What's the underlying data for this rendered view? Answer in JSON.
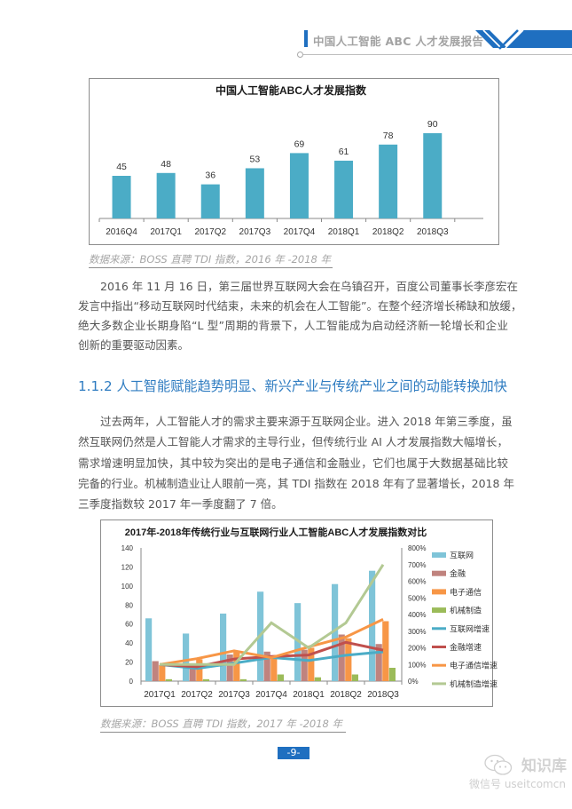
{
  "header": {
    "title": "中国人工智能 ABC 人才发展报告"
  },
  "colors": {
    "brand_blue": "#1f6fc0",
    "heading_blue": "#2f7cc1",
    "body_text": "#555555",
    "source_text": "#a6a6a6"
  },
  "figure1": {
    "source": "数据来源：BOSS 直聘 TDI 指数，2016 年 -2018 年"
  },
  "paragraph1": {
    "lines": [
      "2016 年 11 月 16 日，第三届世界互联网大会在乌镇召开，百度公司董事长李彦宏在",
      "发言中指出“移动互联网时代结束，未来的机会在人工智能”。在整个经济增长稀缺和放缓，",
      "绝大多数企业长期身陷“L 型”周期的背景下，人工智能成为启动经济新一轮增长和企业",
      "创新的重要驱动因素。"
    ]
  },
  "section": {
    "heading": "1.1.2 人工智能赋能趋势明显、新兴产业与传统产业之间的动能转换加快"
  },
  "paragraph2": {
    "lines": [
      "过去两年，人工智能人才的需求主要来源于互联网企业。进入 2018 年第三季度，虽",
      "然互联网仍然是人工智能人才需求的主导行业，但传统行业 AI 人才发展指数大幅增长，",
      "需求增速明显加快，其中较为突出的是电子通信和金融业，它们也属于大数据基础比较",
      "完备的行业。机械制造业让人眼前一亮，其 TDI 指数在 2018 年有了显著增长，2018 年",
      "三季度指数较 2017 年一季度翻了 7 倍。"
    ]
  },
  "figure2": {
    "source": "数据来源：BOSS 直聘 TDI 指数，2017 年 -2018 年"
  },
  "footer": {
    "page_number": "-9-"
  },
  "watermark": {
    "icon": "wechat-icon",
    "name": "知识库",
    "account": "微信号 useitcomcn"
  },
  "chart_data": [
    {
      "type": "bar",
      "title": "中国人工智能ABC人才发展指数",
      "xlabel": "",
      "ylabel": "",
      "categories": [
        "2016Q4",
        "2017Q1",
        "2017Q2",
        "2017Q3",
        "2017Q4",
        "2018Q1",
        "2018Q2",
        "2018Q3"
      ],
      "values": [
        45,
        48,
        36,
        53,
        69,
        61,
        78,
        90
      ],
      "data_labels": true,
      "ylim": [
        0,
        100
      ],
      "grid": false,
      "legend": null,
      "color": "#4bacc6"
    },
    {
      "type": "bar+line",
      "title": "2017年-2018年传统行业与互联网行业人工智能ABC人才发展指数对比",
      "xlabel": "",
      "ylabel": "",
      "categories": [
        "2017Q1",
        "2017Q2",
        "2017Q3",
        "2017Q4",
        "2018Q1",
        "2018Q2",
        "2018Q3"
      ],
      "y_left": {
        "range": [
          0,
          140
        ],
        "ticks": [
          0,
          20,
          40,
          60,
          80,
          100,
          120,
          140
        ]
      },
      "y_right": {
        "range": [
          0,
          800
        ],
        "ticks": [
          "0%",
          "100%",
          "200%",
          "300%",
          "400%",
          "500%",
          "600%",
          "700%",
          "800%"
        ]
      },
      "grid": false,
      "legend_position": "right",
      "series": [
        {
          "name": "互联网",
          "kind": "bar",
          "axis": "left",
          "color": "#7fc4d8",
          "values": [
            66,
            50,
            71,
            94,
            82,
            102,
            116
          ]
        },
        {
          "name": "金融",
          "kind": "bar",
          "axis": "left",
          "color": "#c0837e",
          "values": [
            21,
            18,
            28,
            31,
            33,
            49,
            39
          ]
        },
        {
          "name": "电子通信",
          "kind": "bar",
          "axis": "left",
          "color": "#f79646",
          "values": [
            17,
            23,
            31,
            24,
            35,
            45,
            63
          ]
        },
        {
          "name": "机械制造",
          "kind": "bar",
          "axis": "left",
          "color": "#9bbb59",
          "values": [
            2,
            2,
            2,
            7,
            4,
            7,
            14
          ]
        },
        {
          "name": "互联网增速",
          "kind": "line",
          "axis": "right",
          "unit": "%",
          "color": "#4bacc6",
          "values": [
            100,
            76,
            108,
            142,
            124,
            155,
            176
          ]
        },
        {
          "name": "金融增速",
          "kind": "line",
          "axis": "right",
          "unit": "%",
          "color": "#c0504d",
          "values": [
            100,
            86,
            133,
            148,
            157,
            233,
            186
          ]
        },
        {
          "name": "电子通信增速",
          "kind": "line",
          "axis": "right",
          "unit": "%",
          "color": "#f79646",
          "values": [
            100,
            135,
            182,
            141,
            206,
            265,
            371
          ]
        },
        {
          "name": "机械制造增速",
          "kind": "line",
          "axis": "right",
          "unit": "%",
          "color": "#b3c993",
          "values": [
            100,
            100,
            100,
            350,
            200,
            350,
            700
          ]
        }
      ]
    }
  ]
}
